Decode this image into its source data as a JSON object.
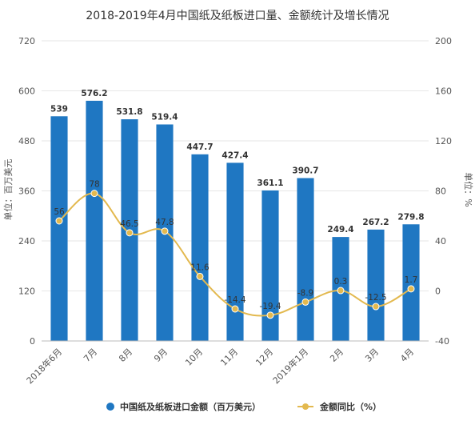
{
  "chart_data": {
    "type": "bar",
    "title": "2018-2019年4月中国纸及纸板进口量、金额统计及增长情况",
    "categories": [
      "2018年6月",
      "7月",
      "8月",
      "9月",
      "10月",
      "11月",
      "12月",
      "2019年1月",
      "2月",
      "3月",
      "4月"
    ],
    "series": [
      {
        "name": "中国纸及纸板进口金额（百万美元）",
        "type": "bar",
        "axis": "left",
        "color": "#1f77c2",
        "values": [
          539,
          576.2,
          531.8,
          519.4,
          447.7,
          427.4,
          361.1,
          390.7,
          249.4,
          267.2,
          279.8
        ]
      },
      {
        "name": "金额同比（%）",
        "type": "line",
        "axis": "right",
        "color": "#e3b94f",
        "values": [
          56,
          78,
          46.5,
          47.8,
          11.6,
          -14.4,
          -19.4,
          -8.9,
          0.3,
          -12.5,
          1.7
        ]
      }
    ],
    "y_left": {
      "label": "单位：百万美元",
      "range": [
        0,
        720
      ],
      "ticks": [
        0,
        120,
        240,
        360,
        480,
        600,
        720
      ]
    },
    "y_right": {
      "label": "单位：%",
      "range": [
        -40,
        200
      ],
      "ticks": [
        -40,
        0,
        40,
        80,
        120,
        160,
        200
      ]
    },
    "grid": true,
    "legend_position": "bottom"
  }
}
